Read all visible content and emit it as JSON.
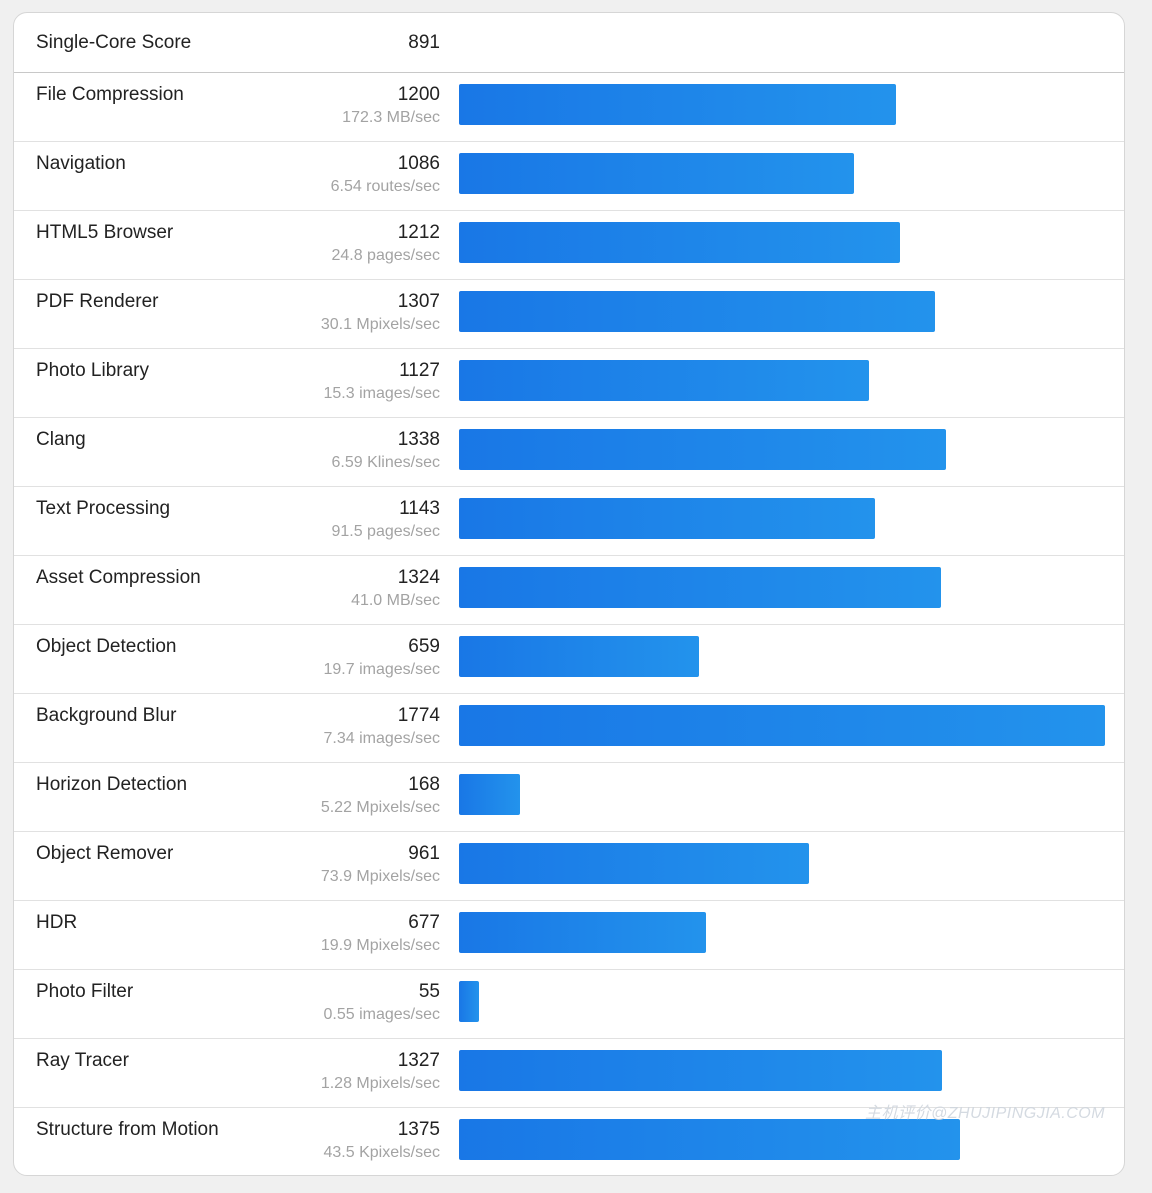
{
  "header": {
    "label": "Single-Core Score",
    "score": "891"
  },
  "chart_data": {
    "type": "bar",
    "orientation": "horizontal",
    "max_value": 1774,
    "rows": [
      {
        "name": "File Compression",
        "score": 1200,
        "rate": "172.3 MB/sec"
      },
      {
        "name": "Navigation",
        "score": 1086,
        "rate": "6.54 routes/sec"
      },
      {
        "name": "HTML5 Browser",
        "score": 1212,
        "rate": "24.8 pages/sec"
      },
      {
        "name": "PDF Renderer",
        "score": 1307,
        "rate": "30.1 Mpixels/sec"
      },
      {
        "name": "Photo Library",
        "score": 1127,
        "rate": "15.3 images/sec"
      },
      {
        "name": "Clang",
        "score": 1338,
        "rate": "6.59 Klines/sec"
      },
      {
        "name": "Text Processing",
        "score": 1143,
        "rate": "91.5 pages/sec"
      },
      {
        "name": "Asset Compression",
        "score": 1324,
        "rate": "41.0 MB/sec"
      },
      {
        "name": "Object Detection",
        "score": 659,
        "rate": "19.7 images/sec"
      },
      {
        "name": "Background Blur",
        "score": 1774,
        "rate": "7.34 images/sec"
      },
      {
        "name": "Horizon Detection",
        "score": 168,
        "rate": "5.22 Mpixels/sec"
      },
      {
        "name": "Object Remover",
        "score": 961,
        "rate": "73.9 Mpixels/sec"
      },
      {
        "name": "HDR",
        "score": 677,
        "rate": "19.9 Mpixels/sec"
      },
      {
        "name": "Photo Filter",
        "score": 55,
        "rate": "0.55 images/sec"
      },
      {
        "name": "Ray Tracer",
        "score": 1327,
        "rate": "1.28 Mpixels/sec"
      },
      {
        "name": "Structure from Motion",
        "score": 1375,
        "rate": "43.5 Kpixels/sec"
      }
    ],
    "colors": {
      "bar_start": "#1977e6",
      "bar_end": "#2393ec"
    }
  },
  "watermark": "主机评价@ZHUJIPINGJIA.COM"
}
